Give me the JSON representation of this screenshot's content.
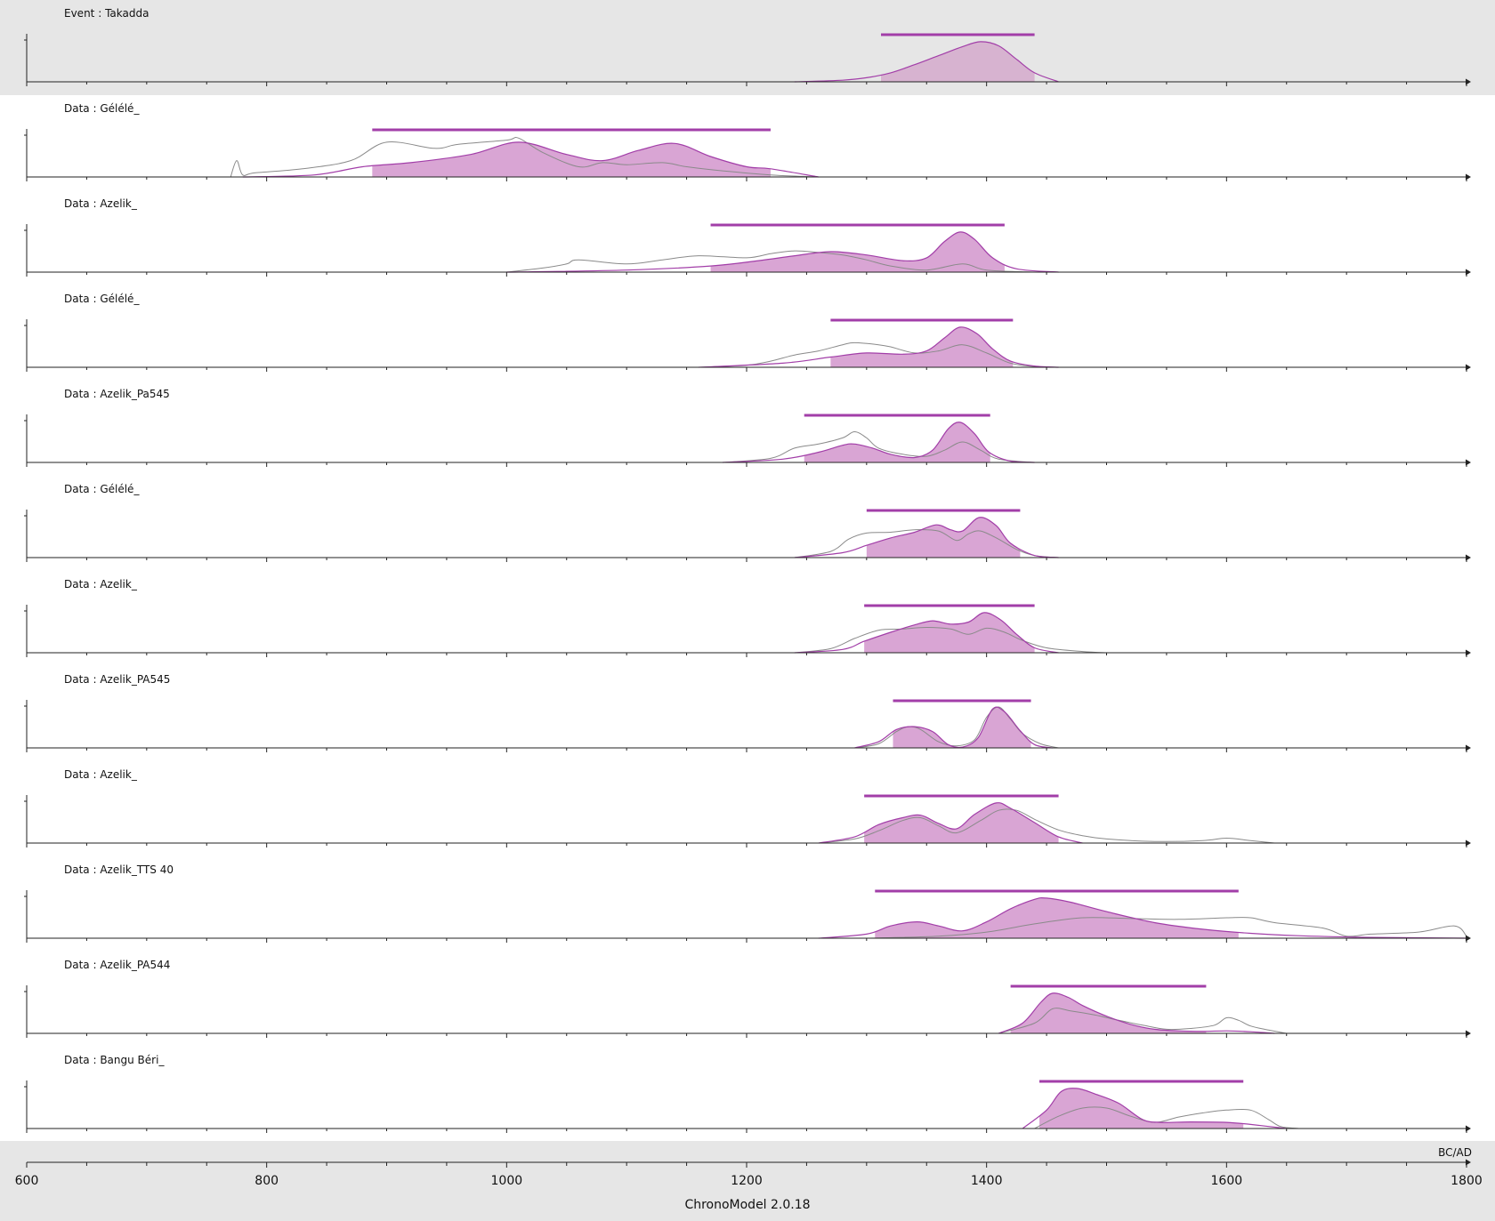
{
  "chart_data": {
    "type": "area",
    "xlim": [
      600,
      1800
    ],
    "x_ticks": [
      600,
      800,
      1000,
      1200,
      1400,
      1600,
      1800
    ],
    "x_unit": "BC/AD",
    "colors": {
      "posterior": "#a23ea8",
      "posterior_fill": "#d9a5d4",
      "event_fill": "#d7b3d0",
      "calibration_curve": "#8a8a8a",
      "event_band": "#e6e6e6"
    },
    "panels": [
      {
        "kind": "Event",
        "name": "Takadda",
        "hpd": [
          1312,
          1440
        ],
        "posterior": {
          "x": [
            1240,
            1280,
            1300,
            1320,
            1340,
            1360,
            1380,
            1395,
            1410,
            1425,
            1440,
            1460
          ],
          "y": [
            0,
            0.04,
            0.1,
            0.22,
            0.42,
            0.64,
            0.86,
            0.98,
            0.88,
            0.55,
            0.22,
            0
          ]
        }
      },
      {
        "kind": "Data",
        "name": "Gélélé_",
        "hpd": [
          888,
          1220
        ],
        "posterior": {
          "x": [
            780,
            840,
            880,
            920,
            970,
            1010,
            1050,
            1080,
            1110,
            1140,
            1170,
            1200,
            1220,
            1260
          ],
          "y": [
            0,
            0.05,
            0.25,
            0.35,
            0.55,
            0.85,
            0.55,
            0.4,
            0.65,
            0.82,
            0.5,
            0.25,
            0.2,
            0
          ]
        },
        "calibration": {
          "x": [
            770,
            775,
            780,
            790,
            830,
            870,
            900,
            940,
            960,
            1000,
            1010,
            1030,
            1060,
            1080,
            1100,
            1130,
            1150,
            1180,
            1220,
            1260
          ],
          "y": [
            0,
            0.4,
            0.05,
            0.1,
            0.2,
            0.4,
            0.85,
            0.7,
            0.8,
            0.9,
            0.95,
            0.6,
            0.25,
            0.35,
            0.3,
            0.35,
            0.25,
            0.15,
            0.05,
            0
          ]
        }
      },
      {
        "kind": "Data",
        "name": "Azelik_",
        "hpd": [
          1170,
          1415
        ],
        "posterior": {
          "x": [
            1000,
            1100,
            1170,
            1210,
            1240,
            1270,
            1300,
            1330,
            1350,
            1365,
            1378,
            1390,
            1405,
            1425,
            1460
          ],
          "y": [
            0,
            0.05,
            0.15,
            0.28,
            0.4,
            0.5,
            0.42,
            0.28,
            0.35,
            0.75,
            0.98,
            0.8,
            0.35,
            0.08,
            0
          ]
        },
        "calibration": {
          "x": [
            1000,
            1030,
            1050,
            1060,
            1100,
            1130,
            1160,
            1200,
            1220,
            1240,
            1260,
            1280,
            1300,
            1320,
            1350,
            1380,
            1400,
            1440
          ],
          "y": [
            0,
            0.1,
            0.2,
            0.3,
            0.2,
            0.3,
            0.4,
            0.35,
            0.45,
            0.52,
            0.48,
            0.42,
            0.3,
            0.15,
            0.05,
            0.2,
            0.05,
            0
          ]
        }
      },
      {
        "kind": "Data",
        "name": "Gélélé_",
        "hpd": [
          1270,
          1422
        ],
        "posterior": {
          "x": [
            1160,
            1230,
            1270,
            1300,
            1330,
            1350,
            1365,
            1378,
            1392,
            1405,
            1420,
            1440,
            1460
          ],
          "y": [
            0,
            0.1,
            0.25,
            0.35,
            0.32,
            0.4,
            0.72,
            0.98,
            0.82,
            0.45,
            0.15,
            0.03,
            0
          ]
        },
        "calibration": {
          "x": [
            1160,
            1200,
            1220,
            1240,
            1260,
            1280,
            1290,
            1310,
            1320,
            1340,
            1360,
            1380,
            1400,
            1420,
            1440,
            1460
          ],
          "y": [
            0,
            0.05,
            0.15,
            0.3,
            0.4,
            0.55,
            0.6,
            0.55,
            0.5,
            0.35,
            0.4,
            0.55,
            0.35,
            0.1,
            0.02,
            0
          ]
        }
      },
      {
        "kind": "Data",
        "name": "Azelik_Pa545",
        "hpd": [
          1248,
          1403
        ],
        "posterior": {
          "x": [
            1180,
            1230,
            1260,
            1280,
            1290,
            1305,
            1320,
            1340,
            1355,
            1368,
            1378,
            1390,
            1402,
            1420,
            1440
          ],
          "y": [
            0,
            0.08,
            0.25,
            0.42,
            0.45,
            0.35,
            0.2,
            0.12,
            0.3,
            0.82,
            0.98,
            0.7,
            0.25,
            0.03,
            0
          ]
        },
        "calibration": {
          "x": [
            1180,
            1220,
            1240,
            1260,
            1280,
            1290,
            1300,
            1310,
            1330,
            1350,
            1365,
            1380,
            1395,
            1410,
            1440
          ],
          "y": [
            0,
            0.1,
            0.35,
            0.45,
            0.6,
            0.75,
            0.6,
            0.35,
            0.2,
            0.15,
            0.3,
            0.5,
            0.3,
            0.08,
            0
          ]
        }
      },
      {
        "kind": "Data",
        "name": "Gélélé_",
        "hpd": [
          1300,
          1428
        ],
        "posterior": {
          "x": [
            1240,
            1280,
            1300,
            1320,
            1340,
            1358,
            1370,
            1380,
            1394,
            1408,
            1420,
            1440,
            1460
          ],
          "y": [
            0,
            0.12,
            0.3,
            0.48,
            0.62,
            0.8,
            0.68,
            0.65,
            0.98,
            0.78,
            0.35,
            0.05,
            0
          ]
        },
        "calibration": {
          "x": [
            1240,
            1270,
            1285,
            1300,
            1320,
            1340,
            1360,
            1375,
            1385,
            1395,
            1410,
            1425,
            1440,
            1460
          ],
          "y": [
            0,
            0.15,
            0.45,
            0.6,
            0.62,
            0.68,
            0.65,
            0.42,
            0.58,
            0.65,
            0.45,
            0.2,
            0.05,
            0
          ]
        }
      },
      {
        "kind": "Data",
        "name": "Azelik_",
        "hpd": [
          1298,
          1440
        ],
        "posterior": {
          "x": [
            1240,
            1280,
            1298,
            1320,
            1340,
            1355,
            1370,
            1385,
            1398,
            1412,
            1425,
            1440,
            1460
          ],
          "y": [
            0,
            0.08,
            0.28,
            0.5,
            0.68,
            0.78,
            0.7,
            0.75,
            0.98,
            0.8,
            0.45,
            0.12,
            0
          ]
        },
        "calibration": {
          "x": [
            1240,
            1270,
            1290,
            1310,
            1330,
            1350,
            1370,
            1385,
            1400,
            1415,
            1430,
            1450,
            1480,
            1500
          ],
          "y": [
            0,
            0.1,
            0.35,
            0.55,
            0.58,
            0.62,
            0.58,
            0.45,
            0.6,
            0.5,
            0.3,
            0.12,
            0.03,
            0
          ]
        }
      },
      {
        "kind": "Data",
        "name": "Azelik_PA545",
        "hpd": [
          1322,
          1437
        ],
        "posterior": {
          "x": [
            1290,
            1310,
            1325,
            1340,
            1355,
            1368,
            1380,
            1393,
            1405,
            1415,
            1428,
            1440,
            1455
          ],
          "y": [
            0,
            0.15,
            0.45,
            0.52,
            0.4,
            0.08,
            0.02,
            0.25,
            0.95,
            0.88,
            0.42,
            0.08,
            0
          ]
        },
        "calibration": {
          "x": [
            1290,
            1310,
            1325,
            1335,
            1345,
            1360,
            1375,
            1390,
            1400,
            1410,
            1420,
            1430,
            1445,
            1460
          ],
          "y": [
            0,
            0.1,
            0.4,
            0.52,
            0.45,
            0.15,
            0.05,
            0.2,
            0.75,
            1.0,
            0.7,
            0.35,
            0.1,
            0
          ]
        }
      },
      {
        "kind": "Data",
        "name": "Azelik_",
        "hpd": [
          1298,
          1460
        ],
        "posterior": {
          "x": [
            1260,
            1290,
            1310,
            1330,
            1345,
            1360,
            1375,
            1390,
            1408,
            1420,
            1440,
            1460,
            1480
          ],
          "y": [
            0,
            0.15,
            0.45,
            0.62,
            0.68,
            0.48,
            0.35,
            0.7,
            0.98,
            0.85,
            0.5,
            0.15,
            0
          ]
        },
        "calibration": {
          "x": [
            1260,
            1290,
            1310,
            1330,
            1345,
            1360,
            1375,
            1395,
            1410,
            1425,
            1440,
            1460,
            1480,
            1500,
            1540,
            1580,
            1600,
            1620,
            1640
          ],
          "y": [
            0,
            0.1,
            0.3,
            0.55,
            0.62,
            0.42,
            0.25,
            0.55,
            0.8,
            0.8,
            0.58,
            0.32,
            0.18,
            0.1,
            0.04,
            0.06,
            0.12,
            0.06,
            0
          ]
        }
      },
      {
        "kind": "Data",
        "name": "Azelik_TTS 40",
        "hpd": [
          1307,
          1610
        ],
        "posterior": {
          "x": [
            1260,
            1300,
            1320,
            1342,
            1360,
            1380,
            1400,
            1420,
            1440,
            1450,
            1470,
            1500,
            1540,
            1580,
            1620,
            1660,
            1720,
            1800
          ],
          "y": [
            0,
            0.1,
            0.3,
            0.4,
            0.3,
            0.18,
            0.4,
            0.72,
            0.95,
            0.98,
            0.88,
            0.65,
            0.38,
            0.22,
            0.12,
            0.06,
            0.02,
            0
          ]
        },
        "calibration": {
          "x": [
            1300,
            1360,
            1400,
            1440,
            1480,
            1520,
            1560,
            1600,
            1620,
            1640,
            1680,
            1700,
            1720,
            1760,
            1790,
            1800
          ],
          "y": [
            0,
            0.05,
            0.15,
            0.35,
            0.5,
            0.48,
            0.46,
            0.5,
            0.5,
            0.38,
            0.25,
            0.05,
            0.1,
            0.15,
            0.3,
            0.05
          ]
        }
      },
      {
        "kind": "Data",
        "name": "Azelik_PA544",
        "hpd": [
          1420,
          1583
        ],
        "posterior": {
          "x": [
            1410,
            1430,
            1445,
            1455,
            1468,
            1480,
            1500,
            1520,
            1540,
            1560,
            1580,
            1600,
            1620,
            1640
          ],
          "y": [
            0,
            0.25,
            0.75,
            0.98,
            0.88,
            0.68,
            0.42,
            0.22,
            0.1,
            0.06,
            0.05,
            0.06,
            0.04,
            0
          ]
        },
        "calibration": {
          "x": [
            1410,
            1440,
            1455,
            1470,
            1490,
            1510,
            1530,
            1550,
            1570,
            1590,
            1600,
            1610,
            1620,
            1635,
            1650
          ],
          "y": [
            0,
            0.25,
            0.6,
            0.55,
            0.45,
            0.32,
            0.2,
            0.1,
            0.12,
            0.2,
            0.38,
            0.32,
            0.18,
            0.08,
            0
          ]
        }
      },
      {
        "kind": "Data",
        "name": "Bangu Béri_",
        "hpd": [
          1444,
          1614
        ],
        "posterior": {
          "x": [
            1430,
            1450,
            1462,
            1475,
            1490,
            1510,
            1530,
            1545,
            1570,
            1600,
            1620,
            1650
          ],
          "y": [
            0,
            0.45,
            0.9,
            0.98,
            0.85,
            0.62,
            0.22,
            0.15,
            0.16,
            0.15,
            0.1,
            0
          ]
        },
        "calibration": {
          "x": [
            1440,
            1460,
            1480,
            1500,
            1520,
            1540,
            1560,
            1580,
            1600,
            1620,
            1635,
            1645,
            1660
          ],
          "y": [
            0,
            0.3,
            0.5,
            0.5,
            0.3,
            0.15,
            0.28,
            0.38,
            0.45,
            0.45,
            0.22,
            0.05,
            0
          ]
        }
      }
    ]
  },
  "footer": {
    "unit_label": "BC/AD",
    "app_version": "ChronoModel 2.0.18"
  }
}
